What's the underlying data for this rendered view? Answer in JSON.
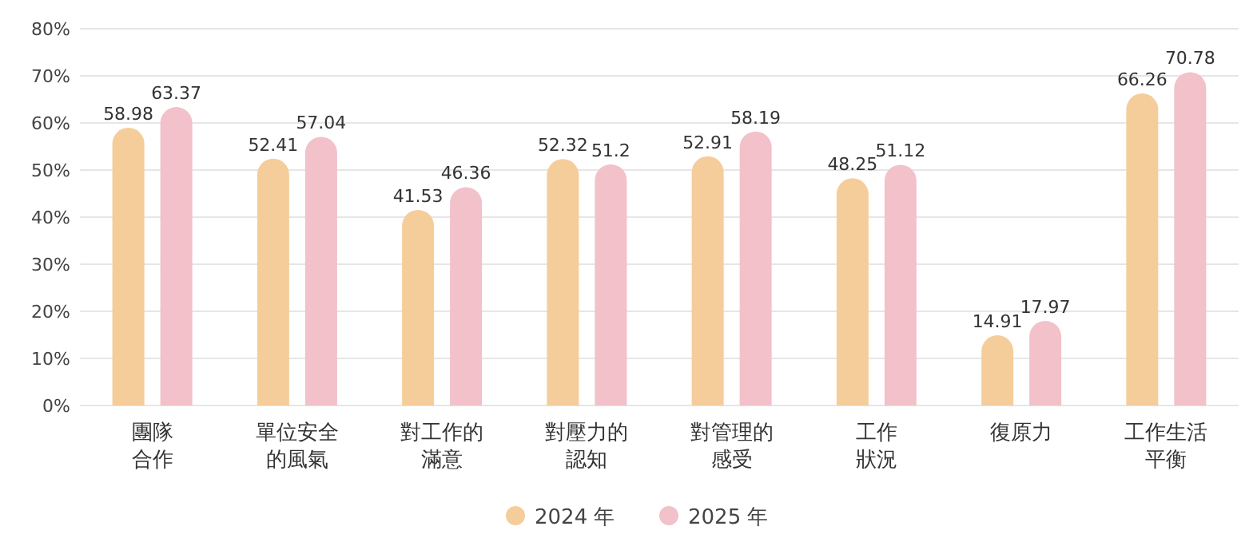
{
  "chart_data": {
    "type": "bar",
    "categories": [
      "團隊合作",
      "單位安全的風氣",
      "對工作的滿意",
      "對壓力的認知",
      "對管理的感受",
      "工作狀況",
      "復原力",
      "工作生活平衡"
    ],
    "series": [
      {
        "name": "2024 年",
        "color": "#f5cd9b",
        "values": [
          58.98,
          52.41,
          41.53,
          52.32,
          52.91,
          48.25,
          14.91,
          66.26
        ]
      },
      {
        "name": "2025 年",
        "color": "#f2c1c9",
        "values": [
          63.37,
          57.04,
          46.36,
          51.2,
          58.19,
          51.12,
          17.97,
          70.78
        ]
      }
    ],
    "ylim": [
      0,
      80
    ],
    "yticks": [
      {
        "value": 0,
        "label": "0%"
      },
      {
        "value": 10,
        "label": "10%"
      },
      {
        "value": 20,
        "label": "20%"
      },
      {
        "value": 30,
        "label": "30%"
      },
      {
        "value": 40,
        "label": "40%"
      },
      {
        "value": 50,
        "label": "50%"
      },
      {
        "value": 60,
        "label": "60%"
      },
      {
        "value": 70,
        "label": "70%"
      },
      {
        "value": 80,
        "label": "80%"
      }
    ],
    "grid": "y",
    "legend": "bottom",
    "data_labels": true
  }
}
